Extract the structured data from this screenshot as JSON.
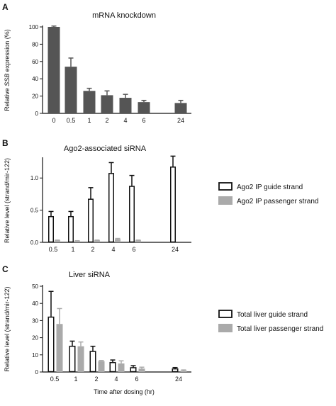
{
  "chart_data": [
    {
      "panel": "A",
      "type": "bar",
      "title": "mRNA knockdown",
      "ylabel_prefix": "Relative ",
      "ylabel_italic": "SSB",
      "ylabel_suffix": " expression (%)",
      "xlabel": "",
      "ylim": [
        0,
        100
      ],
      "yticks": [
        "0",
        "20",
        "40",
        "60",
        "80",
        "100"
      ],
      "categories": [
        "0",
        "0.5",
        "1",
        "2",
        "4",
        "6",
        "24"
      ],
      "series": [
        {
          "values": [
            100,
            54,
            26,
            21,
            18,
            13,
            12
          ],
          "errors": [
            1,
            10,
            3,
            5,
            4,
            2,
            3
          ],
          "color": "#555555",
          "fill": "solid"
        }
      ]
    },
    {
      "panel": "B",
      "type": "bar",
      "title": "Ago2-associated siRNA",
      "ylabel": "Relative level (strand/mir-122)",
      "xlabel": "",
      "ylim": [
        0,
        1.3
      ],
      "yticks": [
        "0.0",
        "0.5",
        "1.0"
      ],
      "categories": [
        "0.5",
        "1",
        "2",
        "4",
        "6",
        "24"
      ],
      "series": [
        {
          "name": "Ago2 IP guide strand",
          "values": [
            0.4,
            0.4,
            0.67,
            1.07,
            0.87,
            1.17
          ],
          "errors": [
            0.08,
            0.08,
            0.18,
            0.17,
            0.17,
            0.17
          ],
          "color": "#111111",
          "fill": "open"
        },
        {
          "name": "Ago2 IP passenger strand",
          "values": [
            0.03,
            0.02,
            0.03,
            0.05,
            0.03,
            0.0
          ],
          "errors": [
            0.005,
            0.005,
            0.005,
            0.01,
            0.005,
            0.0
          ],
          "color": "#aaaaaa",
          "fill": "solid"
        }
      ]
    },
    {
      "panel": "C",
      "type": "bar",
      "title": "Liver siRNA",
      "ylabel": "Relative level (strand/mir-122)",
      "xlabel": "Time after dosing (hr)",
      "ylim": [
        0,
        50
      ],
      "yticks": [
        "0",
        "10",
        "20",
        "30",
        "40",
        "50"
      ],
      "categories": [
        "0.5",
        "1",
        "2",
        "4",
        "6",
        "24"
      ],
      "series": [
        {
          "name": "Total liver guide strand",
          "values": [
            32,
            15,
            12,
            5.5,
            2.5,
            1.8
          ],
          "errors": [
            15,
            3,
            3,
            1.5,
            1.2,
            0.8
          ],
          "color": "#111111",
          "fill": "open"
        },
        {
          "name": "Total liver passenger strand",
          "values": [
            28,
            15,
            6.3,
            5,
            2,
            0.8
          ],
          "errors": [
            9,
            2.5,
            0.4,
            1.5,
            0.8,
            0.4
          ],
          "color": "#aaaaaa",
          "fill": "solid"
        }
      ]
    }
  ]
}
